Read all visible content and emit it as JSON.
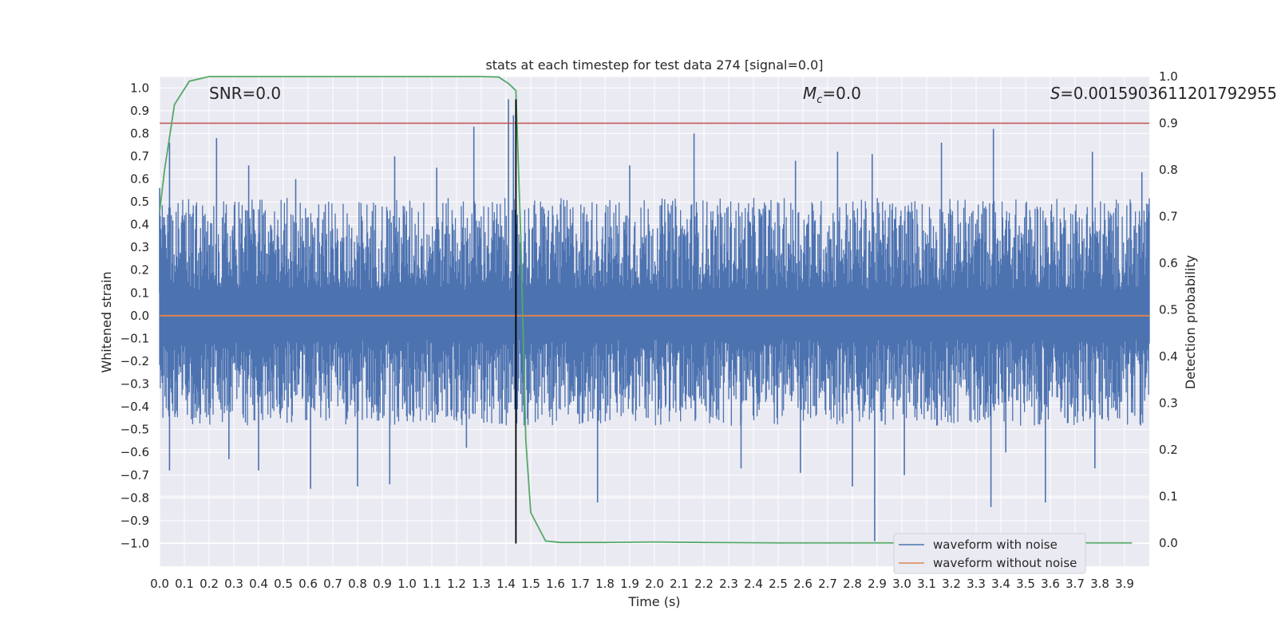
{
  "chart_data": {
    "type": "line",
    "title": "stats at each timestep for test data 274 [signal=0.0]",
    "xlabel": "Time (s)",
    "ylabel": "Whitened strain",
    "y2label": "Detection probability",
    "xlim": [
      0.0,
      4.0
    ],
    "ylim": [
      -1.1,
      1.05
    ],
    "y2lim": [
      -0.05,
      1.0
    ],
    "x_ticks": [
      "0.0",
      "0.1",
      "0.2",
      "0.3",
      "0.4",
      "0.5",
      "0.6",
      "0.7",
      "0.8",
      "0.9",
      "1.0",
      "1.1",
      "1.2",
      "1.3",
      "1.4",
      "1.5",
      "1.6",
      "1.7",
      "1.8",
      "1.9",
      "2.0",
      "2.1",
      "2.2",
      "2.3",
      "2.4",
      "2.5",
      "2.6",
      "2.7",
      "2.8",
      "2.9",
      "3.0",
      "3.1",
      "3.2",
      "3.3",
      "3.4",
      "3.5",
      "3.6",
      "3.7",
      "3.8",
      "3.9"
    ],
    "y_ticks": [
      "1.0",
      "0.9",
      "0.8",
      "0.7",
      "0.6",
      "0.5",
      "0.4",
      "0.3",
      "0.2",
      "0.1",
      "0.0",
      "−0.1",
      "−0.2",
      "−0.3",
      "−0.4",
      "−0.5",
      "−0.6",
      "−0.7",
      "−0.8",
      "−0.9",
      "−1.0"
    ],
    "y2_ticks": [
      "1.0",
      "0.9",
      "0.8",
      "0.7",
      "0.6",
      "0.5",
      "0.4",
      "0.3",
      "0.2",
      "0.1",
      "0.0"
    ],
    "annotations": {
      "snr": "SNR=0.0",
      "mc_symbol": "M",
      "mc_sub": "c",
      "mc_value": "=0.0",
      "s_symbol": "S",
      "s_value": "=0.0015903611201792955"
    },
    "threshold": {
      "axis": "y2",
      "value": 0.9,
      "color": "#c44e52"
    },
    "marker_line": {
      "x": 1.44,
      "y_from": -1.0,
      "y_to": 0.95,
      "color": "#000000"
    },
    "noise_envelope": {
      "pos_typical": 0.45,
      "neg_typical": -0.42,
      "color": "#4c72b0"
    },
    "peaks_up": [
      [
        0.23,
        0.78
      ],
      [
        0.0,
        0.56
      ],
      [
        0.04,
        0.76
      ],
      [
        0.55,
        0.6
      ],
      [
        0.95,
        0.7
      ],
      [
        1.27,
        0.83
      ],
      [
        1.41,
        0.95
      ],
      [
        1.43,
        0.88
      ],
      [
        2.16,
        0.8
      ],
      [
        1.9,
        0.66
      ],
      [
        2.57,
        0.68
      ],
      [
        2.74,
        0.72
      ],
      [
        2.88,
        0.71
      ],
      [
        3.37,
        0.82
      ],
      [
        3.16,
        0.76
      ],
      [
        3.77,
        0.72
      ],
      [
        3.97,
        0.63
      ],
      [
        0.36,
        0.66
      ],
      [
        1.12,
        0.65
      ]
    ],
    "peaks_down": [
      [
        0.04,
        -0.68
      ],
      [
        0.28,
        -0.63
      ],
      [
        0.4,
        -0.68
      ],
      [
        0.61,
        -0.76
      ],
      [
        0.8,
        -0.75
      ],
      [
        0.93,
        -0.74
      ],
      [
        1.24,
        -0.58
      ],
      [
        1.77,
        -0.82
      ],
      [
        2.35,
        -0.67
      ],
      [
        2.59,
        -0.69
      ],
      [
        2.8,
        -0.75
      ],
      [
        2.89,
        -0.99
      ],
      [
        3.01,
        -0.7
      ],
      [
        3.36,
        -0.84
      ],
      [
        3.58,
        -0.82
      ],
      [
        3.78,
        -0.67
      ],
      [
        3.42,
        -0.6
      ]
    ],
    "series": [
      {
        "name": "waveform with noise",
        "color": "#4c72b0"
      },
      {
        "name": "waveform without noise",
        "color": "#dd8452",
        "x": [
          0.0,
          4.0
        ],
        "y": [
          0.0,
          0.0
        ]
      },
      {
        "name": "detection probability",
        "color": "#55a868",
        "axis": "y2",
        "x": [
          0.0,
          0.02,
          0.06,
          0.12,
          0.2,
          0.3,
          0.5,
          0.8,
          1.0,
          1.2,
          1.3,
          1.37,
          1.41,
          1.44,
          1.46,
          1.48,
          1.5,
          1.56,
          1.62,
          1.8,
          2.0,
          2.2,
          2.5,
          3.0,
          3.5,
          3.93
        ],
        "y": [
          0.71,
          0.8,
          0.94,
          0.99,
          1.0,
          1.0,
          1.0,
          1.0,
          1.0,
          1.0,
          1.0,
          0.999,
          0.985,
          0.97,
          0.65,
          0.22,
          0.065,
          0.004,
          0.001,
          0.001,
          0.002,
          0.001,
          0.0,
          0.0,
          0.0,
          0.0
        ]
      }
    ],
    "legend": {
      "placement": "lower-right",
      "entries": [
        {
          "label": "waveform with noise",
          "color": "#4c72b0"
        },
        {
          "label": "waveform without noise",
          "color": "#dd8452"
        }
      ]
    },
    "grid": true,
    "background": "#eaeaf2"
  }
}
